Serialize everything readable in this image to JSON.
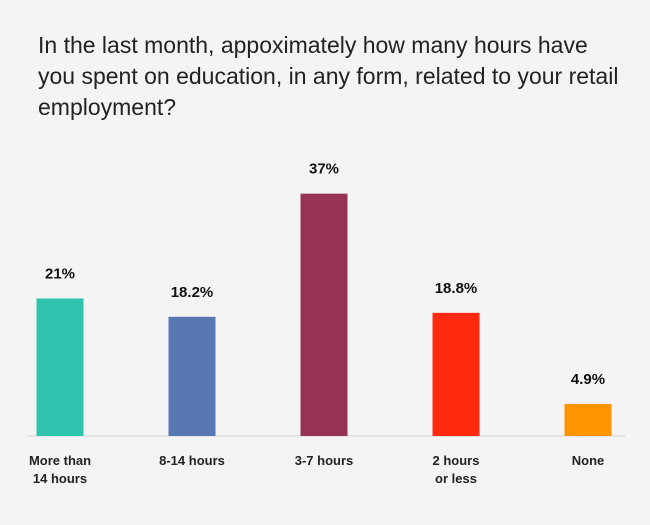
{
  "chart_data": {
    "type": "bar",
    "title": "In the last month, appoximately how many hours have you spent on education, in any form, related to your retail employment?",
    "categories": [
      [
        "More than",
        "14 hours"
      ],
      [
        "8-14 hours"
      ],
      [
        "3-7 hours"
      ],
      [
        "2 hours",
        "or less"
      ],
      [
        "None"
      ]
    ],
    "values": [
      21,
      18.2,
      37,
      18.8,
      4.9
    ],
    "value_labels": [
      "21%",
      "18.2%",
      "37%",
      "18.8%",
      "4.9%"
    ],
    "colors": [
      "#2ec4ae",
      "#5878b4",
      "#963356",
      "#ff2a10",
      "#ff9400"
    ],
    "unit": "%",
    "grid": false,
    "legend": "none"
  }
}
